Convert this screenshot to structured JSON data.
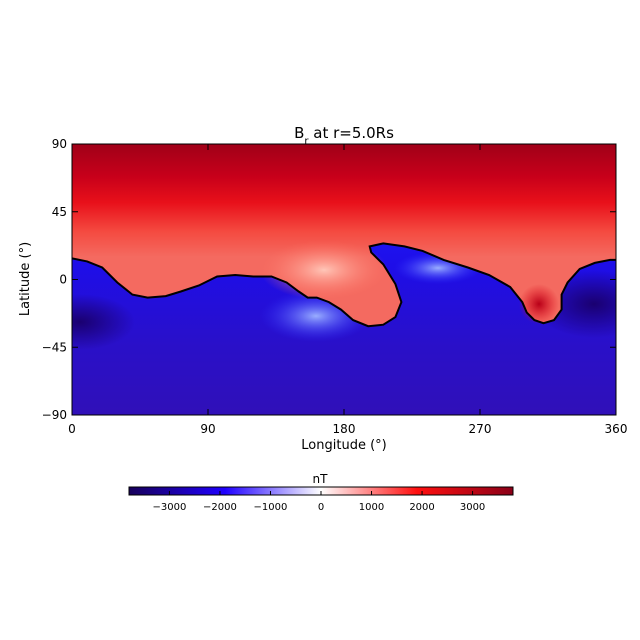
{
  "chart_data": [
    {
      "type": "heatmap",
      "title": "B",
      "title_subscript": "r",
      "title_suffix": " at r=5.0Rs",
      "xlabel": "Longitude (°)",
      "ylabel": "Latitude (°)",
      "xlim": [
        0,
        360
      ],
      "ylim": [
        -90,
        90
      ],
      "x_ticks": [
        "0",
        "90",
        "180",
        "270",
        "360"
      ],
      "y_ticks": [
        "90",
        "45",
        "0",
        "−45",
        "−90"
      ],
      "x_tick_values": [
        0,
        90,
        180,
        270,
        360
      ],
      "y_tick_values": [
        90,
        45,
        0,
        -45,
        -90
      ],
      "neutral_line": [
        [
          0,
          14
        ],
        [
          10,
          12
        ],
        [
          20,
          8
        ],
        [
          30,
          -2
        ],
        [
          40,
          -10
        ],
        [
          50,
          -12
        ],
        [
          62,
          -11
        ],
        [
          72,
          -8
        ],
        [
          84,
          -4
        ],
        [
          96,
          2
        ],
        [
          108,
          3
        ],
        [
          120,
          2
        ],
        [
          132,
          2
        ],
        [
          142,
          -2
        ],
        [
          150,
          -8
        ],
        [
          156,
          -12
        ],
        [
          162,
          -12
        ],
        [
          170,
          -15
        ],
        [
          178,
          -20
        ],
        [
          186,
          -27
        ],
        [
          196,
          -31
        ],
        [
          206,
          -30
        ],
        [
          214,
          -25
        ],
        [
          218,
          -15
        ],
        [
          214,
          -3
        ],
        [
          206,
          10
        ],
        [
          198,
          18
        ],
        [
          197,
          22
        ],
        [
          206,
          24
        ],
        [
          220,
          22
        ],
        [
          232,
          19
        ],
        [
          246,
          13
        ],
        [
          262,
          8
        ],
        [
          276,
          3
        ],
        [
          290,
          -5
        ],
        [
          298,
          -15
        ],
        [
          301,
          -22
        ],
        [
          306,
          -27
        ],
        [
          312,
          -29
        ],
        [
          319,
          -27
        ],
        [
          324,
          -20
        ],
        [
          324,
          -10
        ],
        [
          328,
          -2
        ],
        [
          336,
          7
        ],
        [
          346,
          11
        ],
        [
          356,
          13
        ],
        [
          360,
          13
        ]
      ]
    },
    {
      "type": "colorbar",
      "title": "nT",
      "range": [
        -3800,
        3800
      ],
      "ticks": [
        "−3000",
        "−2000",
        "−1000",
        "0",
        "1000",
        "2000",
        "3000"
      ],
      "tick_values": [
        -3000,
        -2000,
        -1000,
        0,
        1000,
        2000,
        3000
      ],
      "colors": [
        "#17005a",
        "#1f00ff",
        "#ffffff",
        "#ff0f0f",
        "#8a0018"
      ]
    }
  ]
}
